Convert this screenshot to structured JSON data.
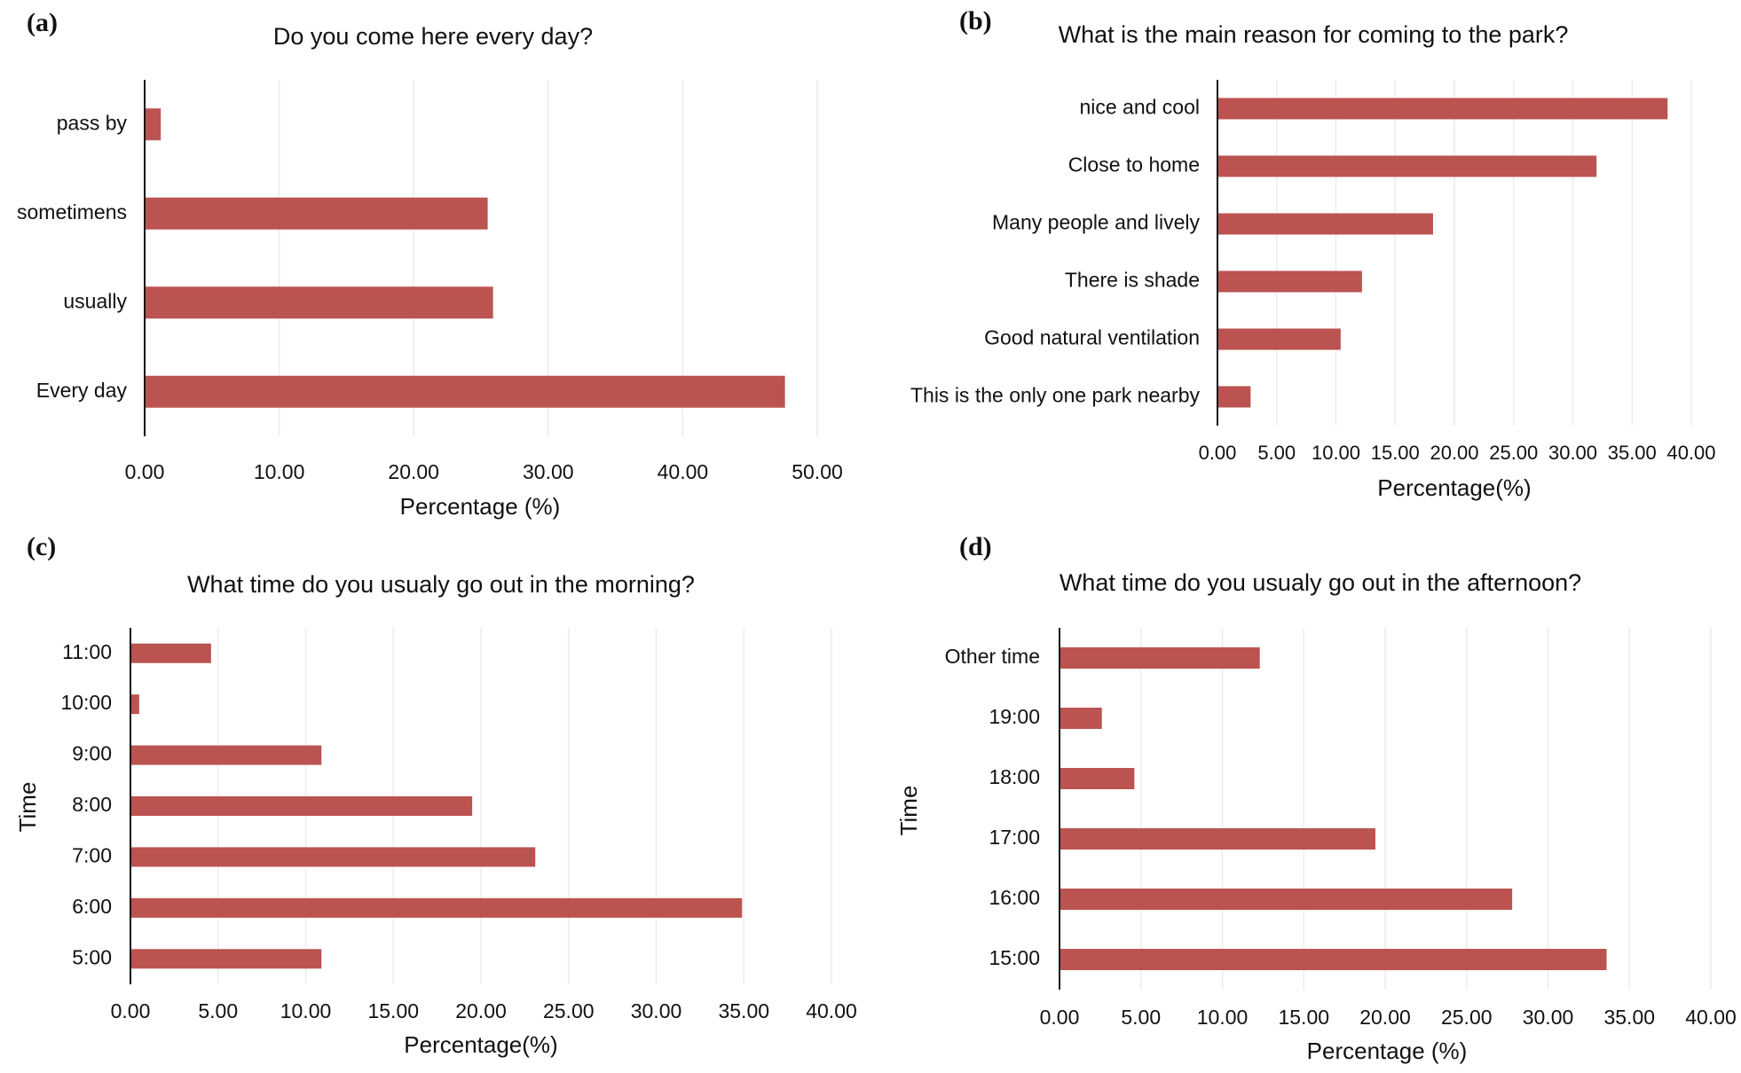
{
  "figure": {
    "bar_color": "#bb5350",
    "gridline_color": "#ececec",
    "axis_color": "#111111"
  },
  "chart_data": [
    {
      "panel_label": "(a)",
      "type": "bar",
      "orientation": "horizontal",
      "title": "Do you come here every day?",
      "xlabel": "Percentage (%)",
      "ylabel": "",
      "xlim": [
        0,
        50
      ],
      "xticks": [
        0,
        10,
        20,
        30,
        40,
        50
      ],
      "tick_labels": [
        "0.00",
        "10.00",
        "20.00",
        "30.00",
        "40.00",
        "50.00"
      ],
      "categories": [
        "pass by",
        "sometimens",
        "usually",
        "Every day"
      ],
      "values": [
        1.2,
        25.5,
        25.9,
        47.6
      ],
      "grid": true
    },
    {
      "panel_label": "(b)",
      "type": "bar",
      "orientation": "horizontal",
      "title": "What is the main reason for coming to the park?",
      "xlabel": "Percentage(%)",
      "ylabel": "",
      "xlim": [
        0,
        40
      ],
      "xticks": [
        0,
        5,
        10,
        15,
        20,
        25,
        30,
        35,
        40
      ],
      "tick_labels": [
        "0.00",
        "5.00",
        "10.00",
        "15.00",
        "20.00",
        "25.00",
        "30.00",
        "35.00",
        "40.00"
      ],
      "categories": [
        "nice and cool",
        "Close to home",
        "Many people and lively",
        "There is shade",
        "Good natural ventilation",
        "This is the only one park nearby"
      ],
      "values": [
        38.0,
        32.0,
        18.2,
        12.2,
        10.4,
        2.8
      ],
      "grid": true
    },
    {
      "panel_label": "(c)",
      "type": "bar",
      "orientation": "horizontal",
      "title": "What time do you usualy go out  in the morning?",
      "xlabel": "Percentage(%)",
      "ylabel": "Time",
      "xlim": [
        0,
        40
      ],
      "xticks": [
        0,
        5,
        10,
        15,
        20,
        25,
        30,
        35,
        40
      ],
      "tick_labels": [
        "0.00",
        "5.00",
        "10.00",
        "15.00",
        "20.00",
        "25.00",
        "30.00",
        "35.00",
        "40.00"
      ],
      "categories": [
        "11:00",
        "10:00",
        "9:00",
        "8:00",
        "7:00",
        "6:00",
        "5:00"
      ],
      "values": [
        4.6,
        0.5,
        10.9,
        19.5,
        23.1,
        34.9,
        10.9
      ],
      "grid": true
    },
    {
      "panel_label": "(d)",
      "type": "bar",
      "orientation": "horizontal",
      "title": "What time do you usualy go out in the afternoon?",
      "xlabel": "Percentage (%)",
      "ylabel": "Time",
      "xlim": [
        0,
        40
      ],
      "xticks": [
        0,
        5,
        10,
        15,
        20,
        25,
        30,
        35,
        40
      ],
      "tick_labels": [
        "0.00",
        "5.00",
        "10.00",
        "15.00",
        "20.00",
        "25.00",
        "30.00",
        "35.00",
        "40.00"
      ],
      "categories": [
        "Other time",
        "19:00",
        "18:00",
        "17:00",
        "16:00",
        "15:00"
      ],
      "values": [
        12.3,
        2.6,
        4.6,
        19.4,
        27.8,
        33.6
      ],
      "grid": true
    }
  ]
}
